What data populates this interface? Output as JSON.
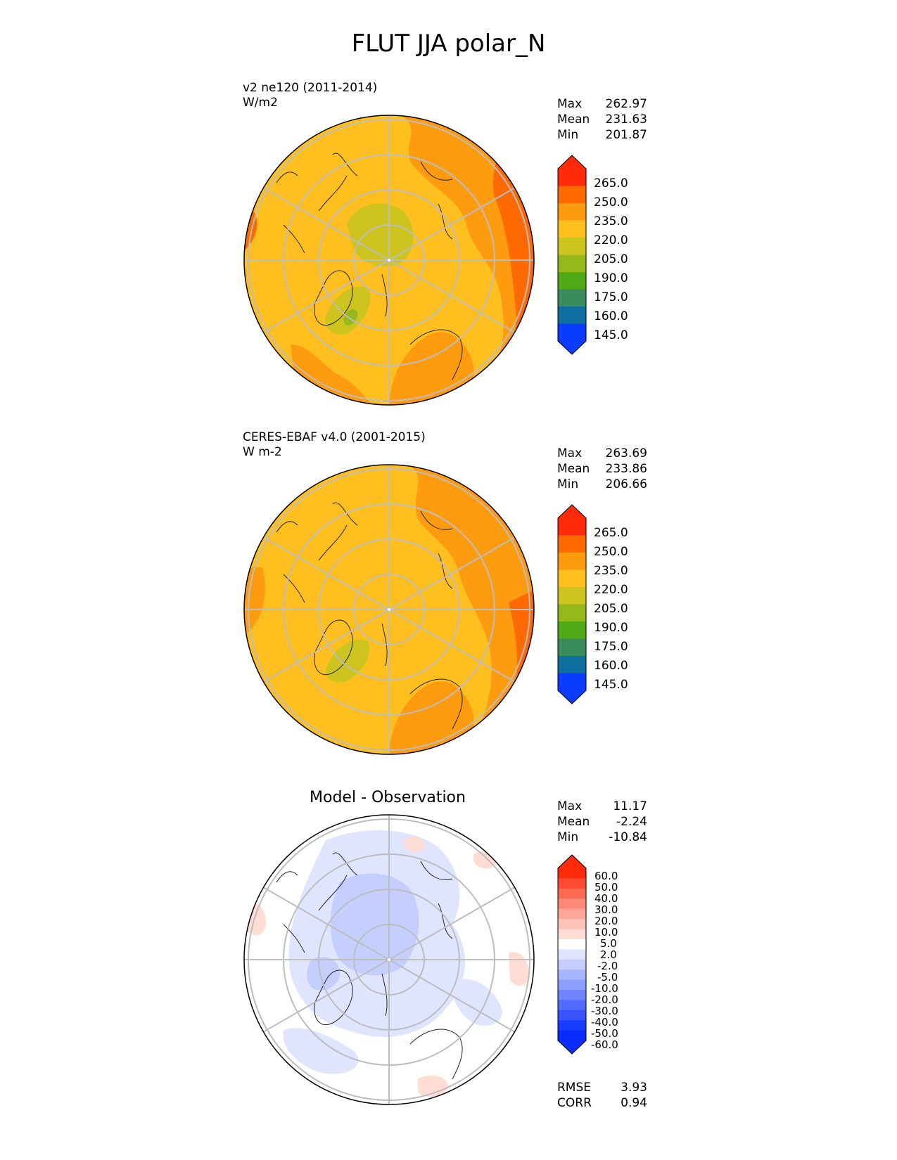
{
  "title": "FLUT JJA polar_N",
  "colors": {
    "land_outline": "#222222",
    "grid": "#bdbdbd",
    "frame": "#000000"
  },
  "panels": [
    {
      "id": "test",
      "label_line1": "v2 ne120 (2011-2014)",
      "label_line2": "W/m2",
      "center_title": "",
      "stats": [
        {
          "name": "Max",
          "value": "262.97"
        },
        {
          "name": "Mean",
          "value": "231.63"
        },
        {
          "name": "Min",
          "value": "201.87"
        }
      ],
      "colorbar": {
        "labels": [
          "265.0",
          "250.0",
          "235.0",
          "220.0",
          "205.0",
          "190.0",
          "175.0",
          "160.0",
          "145.0"
        ],
        "colors": [
          "#ff2a0a",
          "#ff6a00",
          "#ff9b0f",
          "#ffbf1f",
          "#cdc41f",
          "#96b81a",
          "#4fa914",
          "#3a8c5c",
          "#0f6ea0",
          "#0a3cff"
        ],
        "over_color": "#ff2a0a",
        "under_color": "#0a3cff"
      }
    },
    {
      "id": "reference",
      "label_line1": "CERES-EBAF v4.0 (2001-2015)",
      "label_line2": "W m-2",
      "center_title": "",
      "stats": [
        {
          "name": "Max",
          "value": "263.69"
        },
        {
          "name": "Mean",
          "value": "233.86"
        },
        {
          "name": "Min",
          "value": "206.66"
        }
      ],
      "colorbar": {
        "labels": [
          "265.0",
          "250.0",
          "235.0",
          "220.0",
          "205.0",
          "190.0",
          "175.0",
          "160.0",
          "145.0"
        ],
        "colors": [
          "#ff2a0a",
          "#ff6a00",
          "#ff9b0f",
          "#ffbf1f",
          "#cdc41f",
          "#96b81a",
          "#4fa914",
          "#3a8c5c",
          "#0f6ea0",
          "#0a3cff"
        ],
        "over_color": "#ff2a0a",
        "under_color": "#0a3cff"
      }
    },
    {
      "id": "difference",
      "label_line1": "",
      "label_line2": "",
      "center_title": "Model - Observation",
      "stats": [
        {
          "name": "Max",
          "value": "11.17"
        },
        {
          "name": "Mean",
          "value": "-2.24"
        },
        {
          "name": "Min",
          "value": "-10.84"
        }
      ],
      "colorbar": {
        "labels": [
          "60.0",
          "50.0",
          "40.0",
          "30.0",
          "20.0",
          "10.0",
          "5.0",
          "2.0",
          "-2.0",
          "-5.0",
          "-10.0",
          "-20.0",
          "-30.0",
          "-40.0",
          "-50.0",
          "-60.0"
        ],
        "colors": [
          "#ff2a0a",
          "#ff4a33",
          "#ff6a55",
          "#ff8a78",
          "#ffa899",
          "#ffc3b8",
          "#ffdcd4",
          "#ffffff",
          "#dfe5ff",
          "#c4ceff",
          "#a8b6ff",
          "#8c9eff",
          "#7085ff",
          "#536cff",
          "#3754ff",
          "#1a3cff",
          "#0a2cff"
        ],
        "over_color": "#ff2a0a",
        "under_color": "#0a2cff"
      },
      "metrics": [
        {
          "name": "RMSE",
          "value": "3.93"
        },
        {
          "name": "CORR",
          "value": "0.94"
        }
      ]
    }
  ]
}
